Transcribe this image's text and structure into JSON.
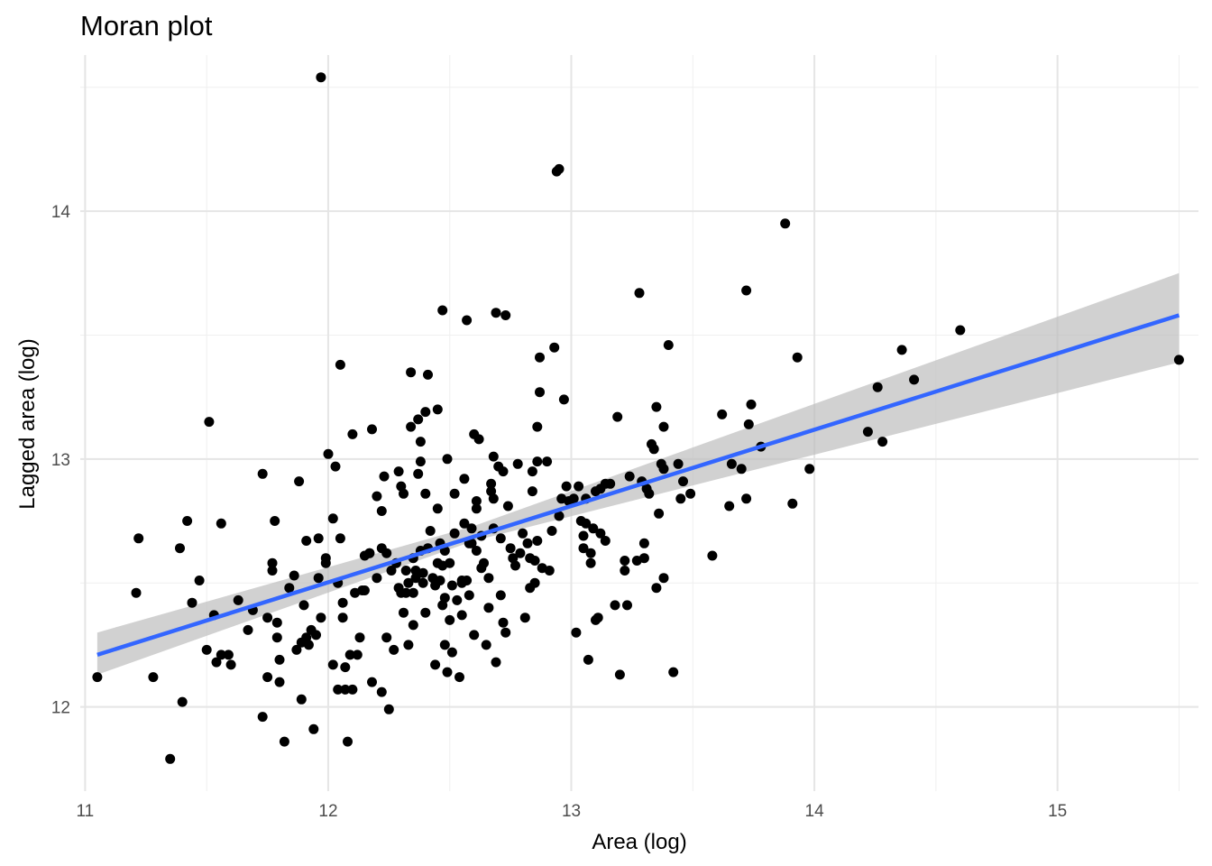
{
  "chart_data": {
    "type": "scatter",
    "title": "Moran plot",
    "xlabel": "Area (log)",
    "ylabel": "Lagged area (log)",
    "xlim": [
      10.98,
      15.58
    ],
    "ylim": [
      11.66,
      14.63
    ],
    "x_ticks": [
      11,
      12,
      13,
      14,
      15
    ],
    "y_ticks": [
      12,
      13,
      14
    ],
    "grid": true,
    "legend": "none",
    "colors": {
      "points": "#000000",
      "line": "#3366ff",
      "band": "#bdbdbd",
      "grid": "#e5e5e5"
    },
    "regression": {
      "x": [
        11.05,
        15.5
      ],
      "y": [
        12.21,
        13.58
      ],
      "y_lower": [
        12.13,
        13.39
      ],
      "y_upper": [
        12.3,
        13.75
      ],
      "x_mid": 12.6,
      "y_lower_mid": 12.67,
      "y_upper_mid": 12.73
    },
    "points": [
      [
        11.05,
        12.12
      ],
      [
        11.22,
        12.68
      ],
      [
        11.21,
        12.46
      ],
      [
        11.28,
        12.12
      ],
      [
        11.35,
        11.79
      ],
      [
        11.39,
        12.64
      ],
      [
        11.4,
        12.02
      ],
      [
        11.42,
        12.75
      ],
      [
        11.44,
        12.42
      ],
      [
        11.47,
        12.51
      ],
      [
        11.5,
        12.23
      ],
      [
        11.51,
        13.15
      ],
      [
        11.53,
        12.37
      ],
      [
        11.54,
        12.18
      ],
      [
        11.56,
        12.74
      ],
      [
        11.56,
        12.21
      ],
      [
        11.59,
        12.21
      ],
      [
        11.6,
        12.17
      ],
      [
        11.63,
        12.43
      ],
      [
        11.67,
        12.31
      ],
      [
        11.69,
        12.39
      ],
      [
        11.73,
        12.94
      ],
      [
        11.73,
        11.96
      ],
      [
        11.75,
        12.36
      ],
      [
        11.75,
        12.12
      ],
      [
        11.77,
        12.58
      ],
      [
        11.77,
        12.55
      ],
      [
        11.78,
        12.75
      ],
      [
        11.79,
        12.34
      ],
      [
        11.79,
        12.28
      ],
      [
        11.8,
        12.19
      ],
      [
        11.8,
        12.1
      ],
      [
        11.82,
        11.86
      ],
      [
        11.84,
        12.48
      ],
      [
        11.86,
        12.53
      ],
      [
        11.87,
        12.23
      ],
      [
        11.88,
        12.91
      ],
      [
        11.89,
        12.26
      ],
      [
        11.89,
        12.03
      ],
      [
        11.9,
        12.41
      ],
      [
        11.91,
        12.28
      ],
      [
        11.91,
        12.67
      ],
      [
        11.92,
        12.25
      ],
      [
        11.93,
        12.31
      ],
      [
        11.94,
        11.91
      ],
      [
        11.95,
        12.29
      ],
      [
        11.96,
        12.68
      ],
      [
        11.96,
        12.52
      ],
      [
        11.97,
        12.36
      ],
      [
        11.97,
        14.54
      ],
      [
        11.99,
        12.6
      ],
      [
        11.99,
        12.58
      ],
      [
        12.0,
        13.02
      ],
      [
        12.02,
        12.76
      ],
      [
        12.02,
        12.17
      ],
      [
        12.03,
        12.97
      ],
      [
        12.04,
        12.5
      ],
      [
        12.04,
        12.07
      ],
      [
        12.05,
        12.68
      ],
      [
        12.05,
        13.38
      ],
      [
        12.06,
        12.36
      ],
      [
        12.06,
        12.42
      ],
      [
        12.07,
        12.16
      ],
      [
        12.07,
        12.07
      ],
      [
        12.08,
        11.86
      ],
      [
        12.09,
        12.21
      ],
      [
        12.1,
        13.1
      ],
      [
        12.1,
        12.07
      ],
      [
        12.11,
        12.46
      ],
      [
        12.12,
        12.21
      ],
      [
        12.13,
        12.28
      ],
      [
        12.14,
        12.47
      ],
      [
        12.15,
        12.47
      ],
      [
        12.15,
        12.61
      ],
      [
        12.17,
        12.62
      ],
      [
        12.17,
        12.62
      ],
      [
        12.18,
        12.1
      ],
      [
        12.18,
        13.12
      ],
      [
        12.2,
        12.85
      ],
      [
        12.2,
        12.52
      ],
      [
        12.22,
        12.06
      ],
      [
        12.22,
        12.79
      ],
      [
        12.22,
        12.64
      ],
      [
        12.23,
        12.93
      ],
      [
        12.24,
        12.28
      ],
      [
        12.24,
        12.62
      ],
      [
        12.25,
        11.99
      ],
      [
        12.26,
        12.55
      ],
      [
        12.27,
        12.23
      ],
      [
        12.28,
        12.58
      ],
      [
        12.29,
        12.95
      ],
      [
        12.29,
        12.48
      ],
      [
        12.3,
        12.46
      ],
      [
        12.3,
        12.89
      ],
      [
        12.31,
        12.86
      ],
      [
        12.31,
        12.38
      ],
      [
        12.32,
        12.55
      ],
      [
        12.32,
        12.46
      ],
      [
        12.33,
        12.25
      ],
      [
        12.33,
        12.5
      ],
      [
        12.34,
        13.13
      ],
      [
        12.34,
        13.35
      ],
      [
        12.35,
        12.6
      ],
      [
        12.35,
        12.46
      ],
      [
        12.35,
        12.33
      ],
      [
        12.36,
        12.55
      ],
      [
        12.36,
        12.52
      ],
      [
        12.37,
        13.16
      ],
      [
        12.37,
        12.94
      ],
      [
        12.38,
        13.07
      ],
      [
        12.38,
        12.99
      ],
      [
        12.38,
        12.63
      ],
      [
        12.39,
        12.5
      ],
      [
        12.39,
        12.54
      ],
      [
        12.4,
        12.86
      ],
      [
        12.4,
        12.38
      ],
      [
        12.4,
        13.19
      ],
      [
        12.41,
        13.34
      ],
      [
        12.41,
        12.64
      ],
      [
        12.42,
        12.71
      ],
      [
        12.43,
        12.52
      ],
      [
        12.44,
        12.49
      ],
      [
        12.44,
        12.17
      ],
      [
        12.45,
        12.8
      ],
      [
        12.45,
        13.2
      ],
      [
        12.45,
        12.58
      ],
      [
        12.46,
        12.66
      ],
      [
        12.46,
        12.51
      ],
      [
        12.47,
        12.57
      ],
      [
        12.47,
        12.41
      ],
      [
        12.47,
        13.6
      ],
      [
        12.48,
        12.63
      ],
      [
        12.48,
        12.44
      ],
      [
        12.48,
        12.25
      ],
      [
        12.49,
        13.0
      ],
      [
        12.49,
        12.14
      ],
      [
        12.5,
        12.35
      ],
      [
        12.5,
        12.58
      ],
      [
        12.51,
        12.49
      ],
      [
        12.51,
        12.22
      ],
      [
        12.52,
        12.7
      ],
      [
        12.52,
        12.86
      ],
      [
        12.53,
        12.43
      ],
      [
        12.54,
        12.12
      ],
      [
        12.55,
        12.5
      ],
      [
        12.55,
        12.51
      ],
      [
        12.55,
        12.37
      ],
      [
        12.56,
        12.92
      ],
      [
        12.56,
        12.74
      ],
      [
        12.57,
        12.51
      ],
      [
        12.57,
        13.56
      ],
      [
        12.58,
        12.45
      ],
      [
        12.58,
        12.66
      ],
      [
        12.59,
        12.66
      ],
      [
        12.59,
        12.72
      ],
      [
        12.6,
        12.29
      ],
      [
        12.6,
        13.1
      ],
      [
        12.61,
        12.63
      ],
      [
        12.61,
        12.83
      ],
      [
        12.61,
        12.8
      ],
      [
        12.62,
        13.08
      ],
      [
        12.63,
        12.69
      ],
      [
        12.63,
        12.56
      ],
      [
        12.64,
        12.58
      ],
      [
        12.65,
        12.25
      ],
      [
        12.66,
        12.52
      ],
      [
        12.66,
        12.4
      ],
      [
        12.67,
        12.87
      ],
      [
        12.67,
        12.9
      ],
      [
        12.68,
        12.72
      ],
      [
        12.68,
        13.01
      ],
      [
        12.68,
        12.84
      ],
      [
        12.69,
        12.18
      ],
      [
        12.69,
        13.59
      ],
      [
        12.7,
        12.97
      ],
      [
        12.71,
        12.68
      ],
      [
        12.71,
        12.45
      ],
      [
        12.72,
        12.34
      ],
      [
        12.72,
        12.95
      ],
      [
        12.73,
        13.58
      ],
      [
        12.73,
        12.3
      ],
      [
        12.74,
        12.81
      ],
      [
        12.75,
        12.64
      ],
      [
        12.76,
        12.6
      ],
      [
        12.77,
        12.57
      ],
      [
        12.78,
        12.98
      ],
      [
        12.79,
        12.62
      ],
      [
        12.8,
        12.7
      ],
      [
        12.81,
        12.36
      ],
      [
        12.82,
        12.66
      ],
      [
        12.83,
        12.6
      ],
      [
        12.83,
        12.48
      ],
      [
        12.84,
        12.95
      ],
      [
        12.84,
        12.87
      ],
      [
        12.85,
        12.59
      ],
      [
        12.85,
        12.5
      ],
      [
        12.86,
        12.67
      ],
      [
        12.86,
        12.99
      ],
      [
        12.86,
        13.13
      ],
      [
        12.87,
        13.27
      ],
      [
        12.87,
        13.41
      ],
      [
        12.88,
        12.56
      ],
      [
        12.9,
        12.99
      ],
      [
        12.91,
        12.55
      ],
      [
        12.92,
        12.71
      ],
      [
        12.93,
        13.45
      ],
      [
        12.94,
        14.16
      ],
      [
        12.95,
        12.77
      ],
      [
        12.95,
        14.17
      ],
      [
        12.96,
        12.84
      ],
      [
        12.97,
        13.24
      ],
      [
        12.98,
        12.89
      ],
      [
        12.99,
        12.83
      ],
      [
        13.01,
        12.84
      ],
      [
        13.02,
        12.3
      ],
      [
        13.03,
        12.89
      ],
      [
        13.04,
        12.75
      ],
      [
        13.05,
        12.64
      ],
      [
        13.05,
        12.69
      ],
      [
        13.06,
        12.84
      ],
      [
        13.06,
        12.74
      ],
      [
        13.07,
        12.19
      ],
      [
        13.08,
        12.62
      ],
      [
        13.08,
        12.58
      ],
      [
        13.09,
        12.72
      ],
      [
        13.1,
        12.35
      ],
      [
        13.1,
        12.87
      ],
      [
        13.11,
        12.36
      ],
      [
        13.12,
        12.7
      ],
      [
        13.12,
        12.88
      ],
      [
        13.14,
        12.67
      ],
      [
        13.14,
        12.9
      ],
      [
        13.16,
        12.9
      ],
      [
        13.18,
        12.41
      ],
      [
        13.19,
        13.17
      ],
      [
        13.2,
        12.13
      ],
      [
        13.22,
        12.55
      ],
      [
        13.22,
        12.59
      ],
      [
        13.23,
        12.41
      ],
      [
        13.24,
        12.93
      ],
      [
        13.27,
        12.59
      ],
      [
        13.28,
        13.67
      ],
      [
        13.29,
        12.91
      ],
      [
        13.3,
        12.6
      ],
      [
        13.3,
        12.66
      ],
      [
        13.31,
        12.88
      ],
      [
        13.32,
        12.86
      ],
      [
        13.33,
        13.06
      ],
      [
        13.34,
        13.04
      ],
      [
        13.35,
        12.48
      ],
      [
        13.35,
        13.21
      ],
      [
        13.36,
        12.78
      ],
      [
        13.37,
        12.98
      ],
      [
        13.38,
        13.13
      ],
      [
        13.38,
        12.52
      ],
      [
        13.38,
        12.96
      ],
      [
        13.4,
        13.46
      ],
      [
        13.42,
        12.14
      ],
      [
        13.44,
        12.98
      ],
      [
        13.45,
        12.84
      ],
      [
        13.46,
        12.91
      ],
      [
        13.49,
        12.86
      ],
      [
        13.58,
        12.61
      ],
      [
        13.62,
        13.18
      ],
      [
        13.65,
        12.81
      ],
      [
        13.66,
        12.98
      ],
      [
        13.7,
        12.96
      ],
      [
        13.72,
        12.84
      ],
      [
        13.72,
        13.68
      ],
      [
        13.73,
        13.14
      ],
      [
        13.74,
        13.22
      ],
      [
        13.78,
        13.05
      ],
      [
        13.88,
        13.95
      ],
      [
        13.91,
        12.82
      ],
      [
        13.93,
        13.41
      ],
      [
        13.98,
        12.96
      ],
      [
        14.22,
        13.11
      ],
      [
        14.26,
        13.29
      ],
      [
        14.28,
        13.07
      ],
      [
        14.36,
        13.44
      ],
      [
        14.41,
        13.32
      ],
      [
        14.6,
        13.52
      ],
      [
        15.5,
        13.4
      ]
    ]
  }
}
